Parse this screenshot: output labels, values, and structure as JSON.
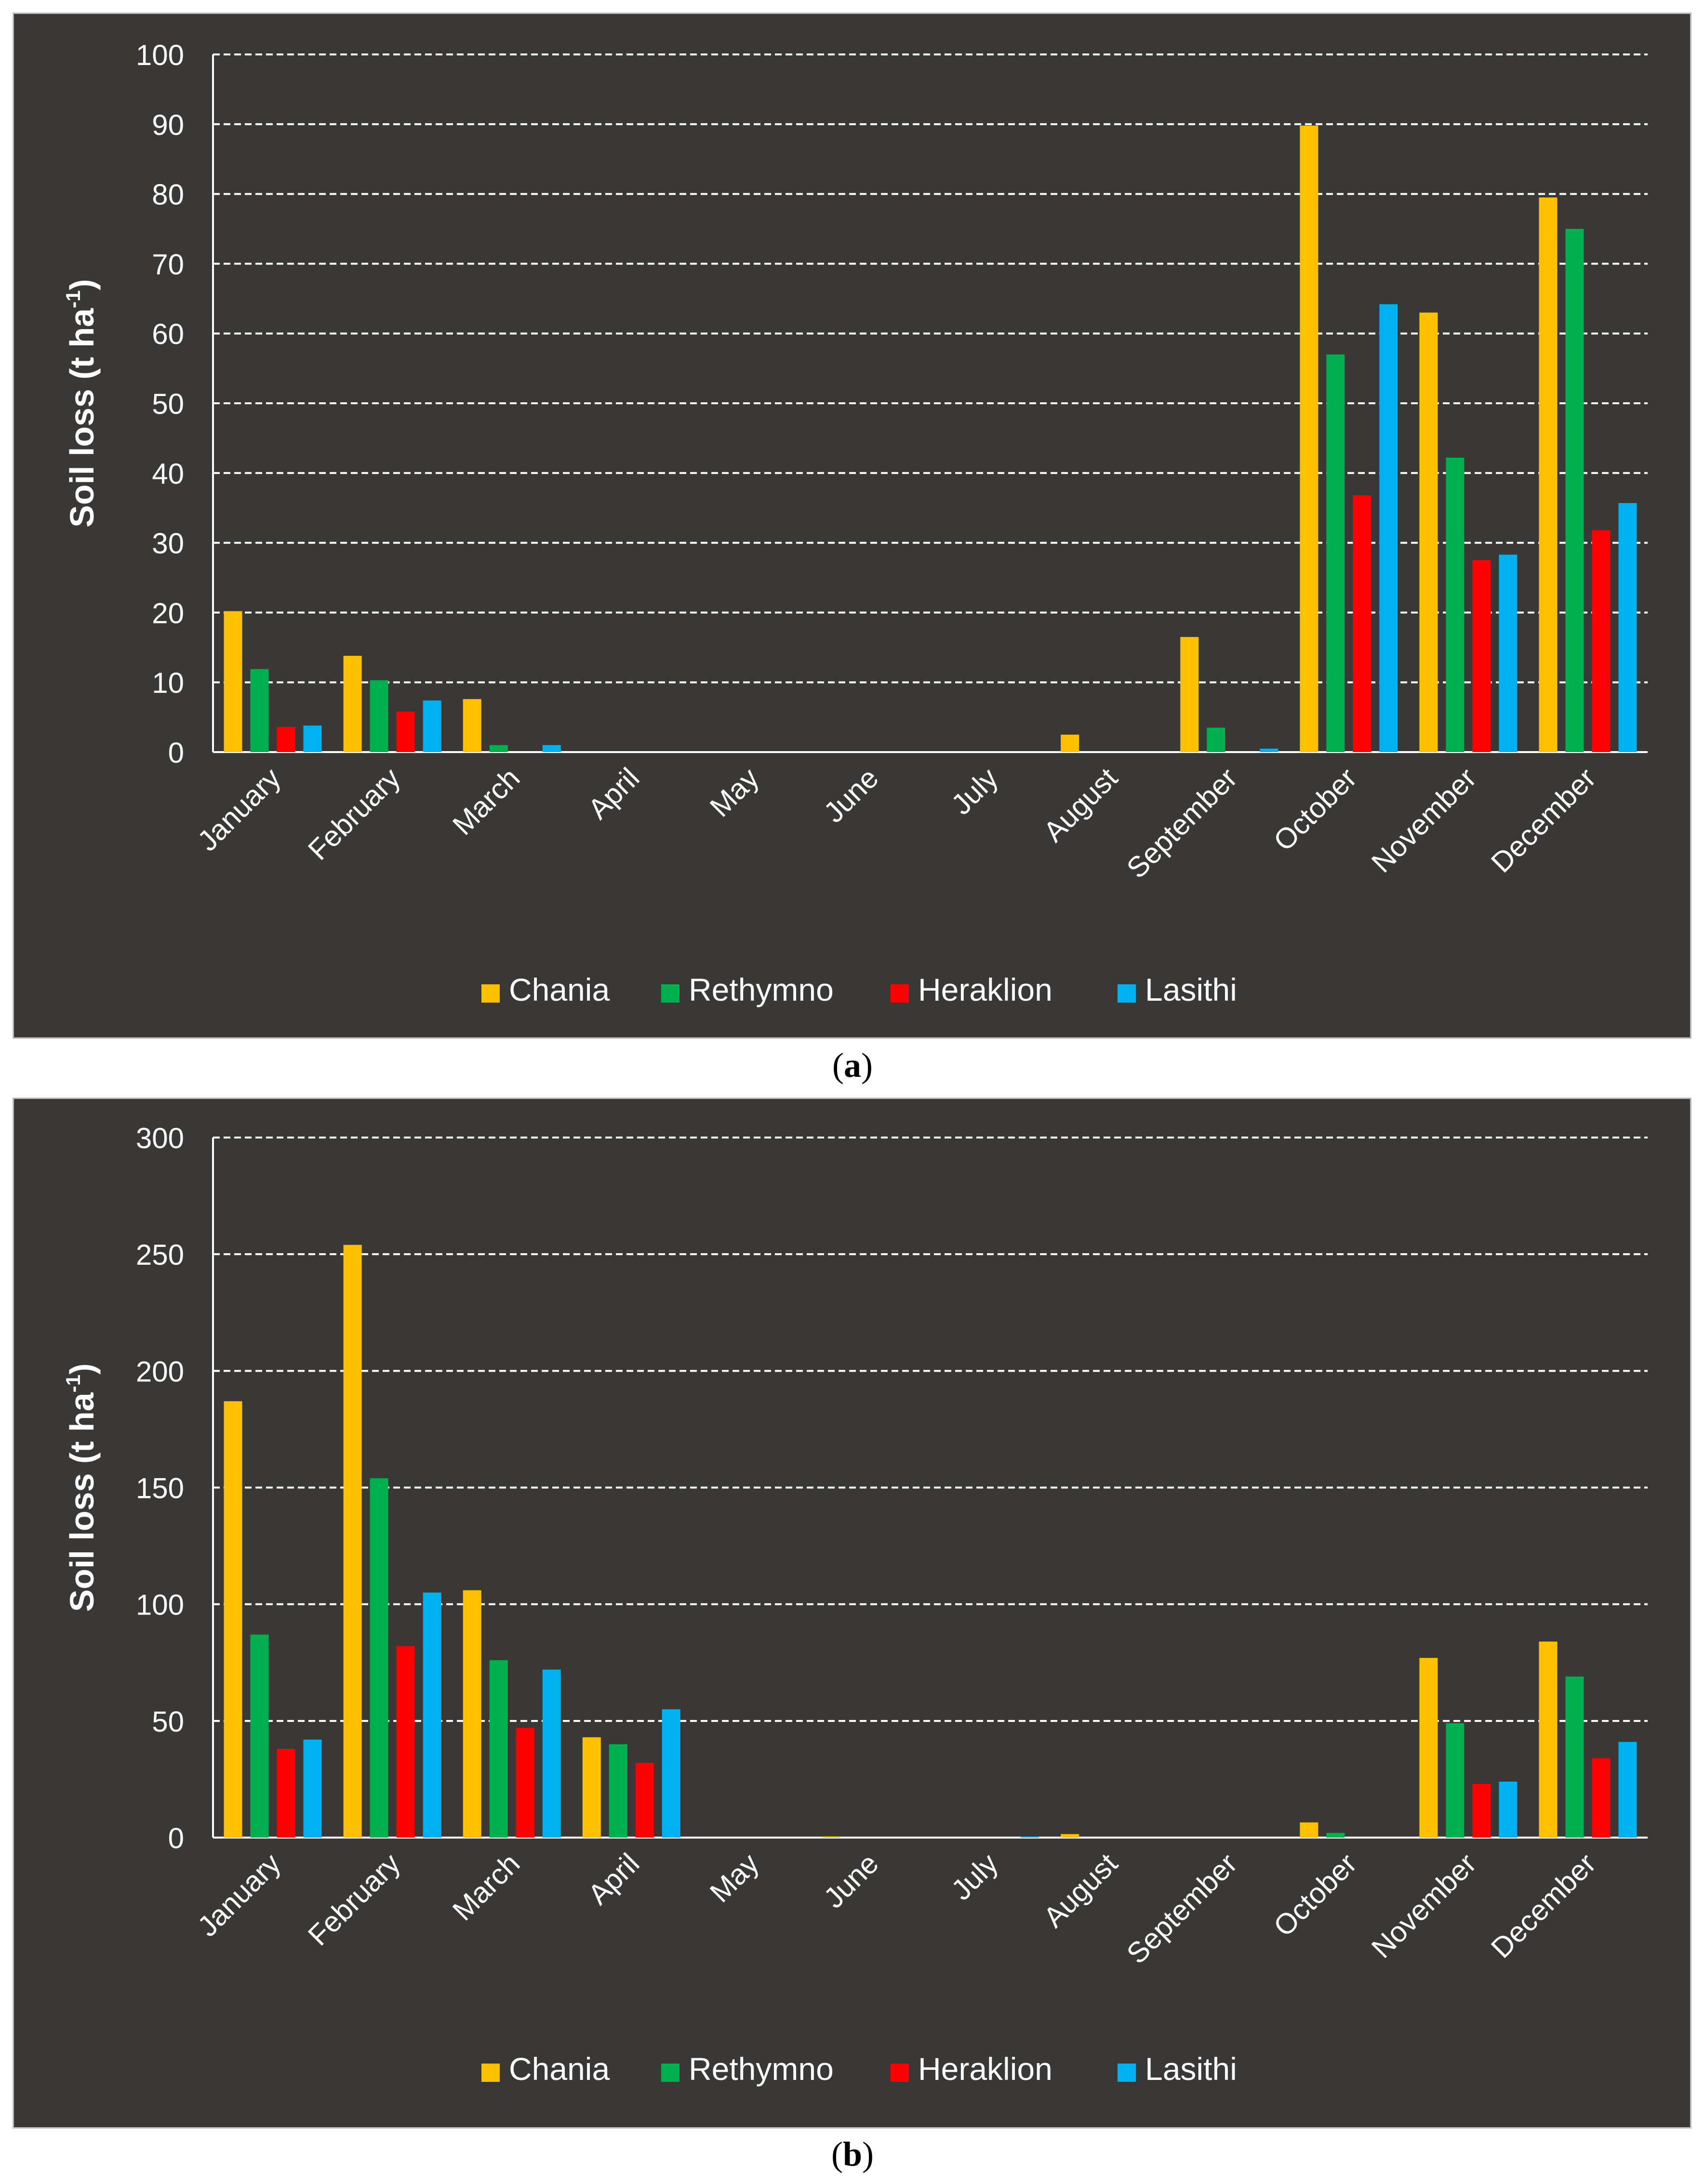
{
  "chart_data": [
    {
      "type": "bar",
      "panel_label": "a",
      "ylabel": "Soil loss (t ha",
      "ylabel_sup": "-1",
      "ylabel_close": ")",
      "ylim": [
        0,
        100
      ],
      "yticks": [
        0,
        10,
        20,
        30,
        40,
        50,
        60,
        70,
        80,
        90,
        100
      ],
      "grid": true,
      "legend_position": "bottom",
      "categories": [
        "January",
        "February",
        "March",
        "April",
        "May",
        "June",
        "July",
        "August",
        "September",
        "October",
        "November",
        "December"
      ],
      "series": [
        {
          "name": "Chania",
          "color": "#ffc000",
          "values": [
            20.2,
            13.8,
            7.6,
            0,
            0,
            0,
            0,
            2.5,
            16.5,
            89.8,
            63.0,
            79.5
          ]
        },
        {
          "name": "Rethymno",
          "color": "#00b050",
          "values": [
            11.9,
            10.3,
            1.0,
            0,
            0,
            0,
            0,
            0,
            3.5,
            57.0,
            42.2,
            75.0
          ]
        },
        {
          "name": "Heraklion",
          "color": "#ff0000",
          "values": [
            3.6,
            5.8,
            0,
            0,
            0,
            0,
            0,
            0,
            0,
            36.8,
            27.5,
            31.8
          ]
        },
        {
          "name": "Lasithi",
          "color": "#00b0f0",
          "values": [
            3.8,
            7.4,
            1.0,
            0,
            0,
            0,
            0,
            0,
            0.5,
            64.2,
            28.3,
            35.7
          ]
        }
      ]
    },
    {
      "type": "bar",
      "panel_label": "b",
      "ylabel": "Soil loss (t ha",
      "ylabel_sup": "-1",
      "ylabel_close": ")",
      "ylim": [
        0,
        300
      ],
      "yticks": [
        0,
        50,
        100,
        150,
        200,
        250,
        300
      ],
      "grid": true,
      "legend_position": "bottom",
      "categories": [
        "January",
        "February",
        "March",
        "April",
        "May",
        "June",
        "July",
        "August",
        "September",
        "October",
        "November",
        "December"
      ],
      "series": [
        {
          "name": "Chania",
          "color": "#ffc000",
          "values": [
            187,
            254,
            106,
            43,
            0,
            0.5,
            0,
            1.5,
            0,
            6.5,
            77,
            84
          ]
        },
        {
          "name": "Rethymno",
          "color": "#00b050",
          "values": [
            87,
            154,
            76,
            40,
            0,
            0,
            0,
            0,
            0,
            2,
            49,
            69
          ]
        },
        {
          "name": "Heraklion",
          "color": "#ff0000",
          "values": [
            38,
            82,
            47,
            32,
            0,
            0,
            0,
            0,
            0,
            0,
            23,
            34
          ]
        },
        {
          "name": "Lasithi",
          "color": "#00b0f0",
          "values": [
            42,
            105,
            72,
            55,
            0,
            0,
            0.5,
            0,
            0,
            0,
            24,
            41
          ]
        }
      ]
    }
  ],
  "captions": [
    {
      "open": "(",
      "label": "a",
      "close": ")"
    },
    {
      "open": "(",
      "label": "b",
      "close": ")"
    }
  ]
}
